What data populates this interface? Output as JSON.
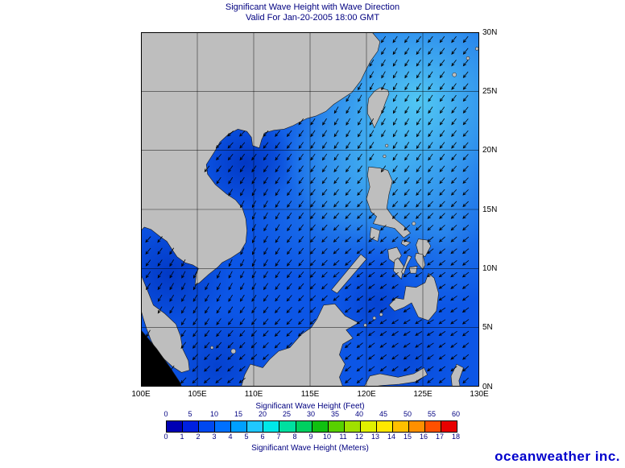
{
  "title": {
    "line1": "Significant Wave Height with Wave Direction",
    "line2": "Valid For Jan-20-2005 18:00 GMT"
  },
  "map": {
    "lon_labels": [
      "100E",
      "105E",
      "110E",
      "115E",
      "120E",
      "125E",
      "130E"
    ],
    "lat_labels": [
      "30N",
      "25N",
      "20N",
      "15N",
      "10N",
      "5N",
      "0N"
    ],
    "colors": {
      "ocean_base": "#0c56e6",
      "ocean_high": "#54ccf4",
      "ocean_low": "#0034c0",
      "land": "#bebebe",
      "land_outline": "#1a1a1a",
      "out_of_domain_land": "#000000",
      "grid": "#000000"
    }
  },
  "colorbar": {
    "feet_caption": "Significant Wave Height (Feet)",
    "feet_ticks": [
      "0",
      "5",
      "10",
      "15",
      "20",
      "25",
      "30",
      "35",
      "40",
      "45",
      "50",
      "55",
      "60"
    ],
    "meters_caption": "Significant Wave Height (Meters)",
    "meters_ticks": [
      "0",
      "1",
      "2",
      "3",
      "4",
      "5",
      "6",
      "7",
      "8",
      "9",
      "10",
      "11",
      "12",
      "13",
      "14",
      "15",
      "16",
      "17",
      "18"
    ],
    "segment_colors": [
      "#0000b4",
      "#0020e0",
      "#0048f0",
      "#0070ff",
      "#00a0ff",
      "#20c8ff",
      "#00e8e8",
      "#00e0a0",
      "#00d060",
      "#10c010",
      "#58d000",
      "#a0e000",
      "#e0f000",
      "#ffe800",
      "#ffc000",
      "#ff9000",
      "#ff5000",
      "#e80000"
    ],
    "text_color": "#000080"
  },
  "branding": {
    "logo_text": "oceanweather inc.",
    "logo_color": "#0000cc"
  },
  "chart_data": {
    "type": "heatmap",
    "title": "Significant Wave Height with Wave Direction",
    "valid_time": "Jan-20-2005 18:00 GMT",
    "region": {
      "lon_min_deg_e": 100,
      "lon_max_deg_e": 130,
      "lat_min_deg_n": 0,
      "lat_max_deg_n": 30
    },
    "grid_interval_deg": 5,
    "units": [
      "Feet",
      "Meters"
    ],
    "feet_scale": [
      0,
      5,
      10,
      15,
      20,
      25,
      30,
      35,
      40,
      45,
      50,
      55,
      60
    ],
    "meters_scale": [
      0,
      1,
      2,
      3,
      4,
      5,
      6,
      7,
      8,
      9,
      10,
      11,
      12,
      13,
      14,
      15,
      16,
      17,
      18
    ],
    "wave_direction_arrows": "arrows point toward the southwest across the basin (northeast monsoon swell)",
    "approx_significant_wave_height_m": {
      "south_china_sea_central": 2.5,
      "luzon_strait_and_nw_pacific": 4,
      "east_of_taiwan": 4.5,
      "gulf_of_tonkin": 1.5,
      "gulf_of_thailand": 1.5,
      "sulu_sea": 1.5,
      "philippine_sea": 3
    }
  }
}
